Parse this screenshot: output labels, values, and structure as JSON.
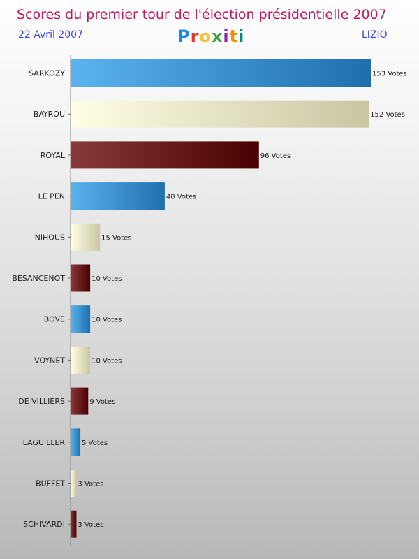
{
  "header": {
    "title": "Scores du premier tour de l'élection présidentielle 2007",
    "date": "22 Avril 2007",
    "location": "LIZIO",
    "logo": "Proxiti",
    "logo_colors": [
      "#1e88e5",
      "#e53935",
      "#fbc02d",
      "#43a047",
      "#8e24aa",
      "#fb8c00",
      "#00897b"
    ]
  },
  "chart_data": {
    "type": "bar",
    "orientation": "horizontal",
    "title": "Scores du premier tour de l'élection présidentielle 2007",
    "xlabel": "",
    "ylabel": "",
    "value_suffix": " Votes",
    "xlim": [
      0,
      153
    ],
    "grid": false,
    "categories": [
      "SARKOZY",
      "BAYROU",
      "ROYAL",
      "LE PEN",
      "NIHOUS",
      "BESANCENOT",
      "BOVE",
      "VOYNET",
      "DE VILLIERS",
      "LAGUILLER",
      "BUFFET",
      "SCHIVARDI"
    ],
    "values": [
      153,
      152,
      96,
      48,
      15,
      10,
      10,
      10,
      9,
      5,
      3,
      3
    ],
    "colors": [
      "blue",
      "cream",
      "maroon",
      "blue",
      "cream",
      "maroon",
      "blue",
      "cream",
      "maroon",
      "blue",
      "cream",
      "maroon"
    ],
    "palette": {
      "blue": [
        "#5ab3ee",
        "#1f6fae"
      ],
      "cream": [
        "#ffffe6",
        "#c9c6a2"
      ],
      "maroon": [
        "#8a3a3a",
        "#4a0000"
      ]
    }
  }
}
